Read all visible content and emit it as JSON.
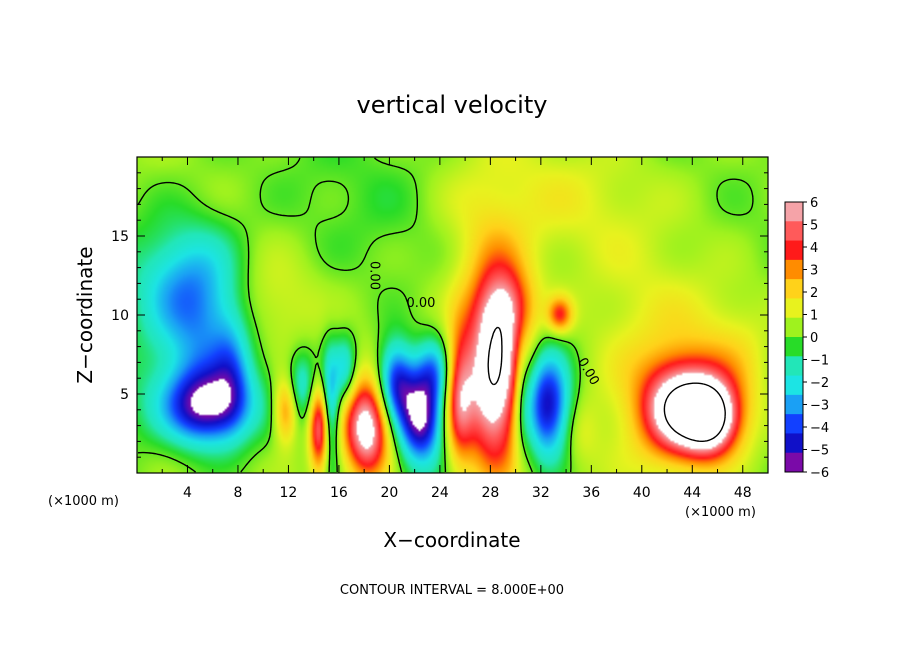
{
  "chart_data": {
    "type": "heatmap",
    "title": "vertical velocity",
    "xlabel": "X−coordinate",
    "ylabel": "Z−coordinate",
    "x_unit_left": "(×1000 m)",
    "x_unit_right": "(×1000 m)",
    "footer": "CONTOUR INTERVAL = 8.000E+00",
    "xlim": [
      0,
      50
    ],
    "ylim": [
      0,
      20
    ],
    "xticks": [
      4,
      8,
      12,
      16,
      20,
      24,
      28,
      32,
      36,
      40,
      44,
      48
    ],
    "yticks": [
      5,
      10,
      15
    ],
    "colorbar": {
      "range": [
        -6,
        6
      ],
      "ticks": [
        6,
        5,
        4,
        3,
        2,
        1,
        0,
        -1,
        -2,
        -3,
        -4,
        -5,
        -6
      ],
      "tick_labels": [
        "6",
        "5",
        "4",
        "3",
        "2",
        "1",
        "0",
        "−1",
        "−2",
        "−3",
        "−4",
        "−5",
        "−6"
      ],
      "colors": [
        "#f5a3a8",
        "#ff5a5a",
        "#ff1a1a",
        "#ff8c00",
        "#ffd21a",
        "#e8f21e",
        "#9ff21e",
        "#28dc28",
        "#22e6b8",
        "#1ce4e4",
        "#1aa0f5",
        "#1240ff",
        "#1010c8",
        "#7a0aa8"
      ]
    },
    "contour_labels": [
      {
        "text": "0.00",
        "x": 18.5,
        "y": 12.5,
        "rotate": 90
      },
      {
        "text": "0.00",
        "x": 22.5,
        "y": 10.5,
        "rotate": 0
      },
      {
        "text": "0.00",
        "x": 35.5,
        "y": 6.3,
        "rotate": 60
      }
    ],
    "features": [
      {
        "x": 5.5,
        "y": 4.2,
        "sx": 2.4,
        "sy": 1.7,
        "a": -6.0
      },
      {
        "x": 5.0,
        "y": 9.5,
        "sx": 2.8,
        "sy": 3.6,
        "a": -3.0
      },
      {
        "x": 3.5,
        "y": 12.5,
        "sx": 3.0,
        "sy": 2.5,
        "a": -1.5
      },
      {
        "x": 7.5,
        "y": 6.5,
        "sx": 1.0,
        "sy": 2.5,
        "a": -1.8
      },
      {
        "x": 9.0,
        "y": 11.0,
        "sx": 2.0,
        "sy": 2.5,
        "a": 1.0
      },
      {
        "x": 12.0,
        "y": 10.5,
        "sx": 2.0,
        "sy": 2.0,
        "a": 0.8
      },
      {
        "x": 11.8,
        "y": 4.0,
        "sx": 0.7,
        "sy": 1.5,
        "a": 3.5
      },
      {
        "x": 13.0,
        "y": 5.5,
        "sx": 0.8,
        "sy": 1.5,
        "a": -2.2
      },
      {
        "x": 14.5,
        "y": 2.8,
        "sx": 0.6,
        "sy": 2.0,
        "a": 5.5
      },
      {
        "x": 15.3,
        "y": 4.0,
        "sx": 0.5,
        "sy": 2.5,
        "a": -4.0
      },
      {
        "x": 16.5,
        "y": 6.5,
        "sx": 0.6,
        "sy": 1.5,
        "a": -2.5
      },
      {
        "x": 18.2,
        "y": 2.8,
        "sx": 1.3,
        "sy": 2.2,
        "a": 7.0
      },
      {
        "x": 20.5,
        "y": 5.8,
        "sx": 1.0,
        "sy": 1.8,
        "a": -5.0
      },
      {
        "x": 22.5,
        "y": 3.5,
        "sx": 1.2,
        "sy": 2.0,
        "a": -6.5
      },
      {
        "x": 23.5,
        "y": 6.5,
        "sx": 1.0,
        "sy": 1.5,
        "a": -3.0
      },
      {
        "x": 25.5,
        "y": 4.8,
        "sx": 0.8,
        "sy": 3.0,
        "a": 4.0
      },
      {
        "x": 28.3,
        "y": 6.2,
        "sx": 1.6,
        "sy": 4.2,
        "a": 7.5
      },
      {
        "x": 29.5,
        "y": 10.5,
        "sx": 1.5,
        "sy": 1.8,
        "a": 3.0
      },
      {
        "x": 27.5,
        "y": 14.5,
        "sx": 3.0,
        "sy": 3.5,
        "a": 1.2
      },
      {
        "x": 30.5,
        "y": 5.0,
        "sx": 0.5,
        "sy": 3.0,
        "a": -1.5
      },
      {
        "x": 32.5,
        "y": 4.2,
        "sx": 1.3,
        "sy": 2.3,
        "a": -6.0
      },
      {
        "x": 33.5,
        "y": 10.0,
        "sx": 0.7,
        "sy": 0.8,
        "a": 3.5
      },
      {
        "x": 35.0,
        "y": 2.5,
        "sx": 1.0,
        "sy": 1.5,
        "a": 0.8
      },
      {
        "x": 43.0,
        "y": 4.0,
        "sx": 2.0,
        "sy": 2.0,
        "a": 6.0
      },
      {
        "x": 45.5,
        "y": 3.5,
        "sx": 1.5,
        "sy": 1.6,
        "a": 6.5
      },
      {
        "x": 43.5,
        "y": 4.5,
        "sx": 4.5,
        "sy": 3.0,
        "a": 2.5
      },
      {
        "x": 40.0,
        "y": 10.0,
        "sx": 4.0,
        "sy": 3.0,
        "a": 0.8
      },
      {
        "x": 47.5,
        "y": 8.0,
        "sx": 2.5,
        "sy": 3.0,
        "a": 0.5
      },
      {
        "x": 0.0,
        "y": 5.0,
        "sx": 1.5,
        "sy": 2.5,
        "a": -0.6
      },
      {
        "x": 50.0,
        "y": 5.0,
        "sx": 1.0,
        "sy": 2.5,
        "a": -0.6
      },
      {
        "x": 18.0,
        "y": 16.0,
        "sx": 6.0,
        "sy": 4.0,
        "a": -0.4
      },
      {
        "x": 35.0,
        "y": 17.5,
        "sx": 6.0,
        "sy": 3.0,
        "a": 0.9
      }
    ]
  }
}
